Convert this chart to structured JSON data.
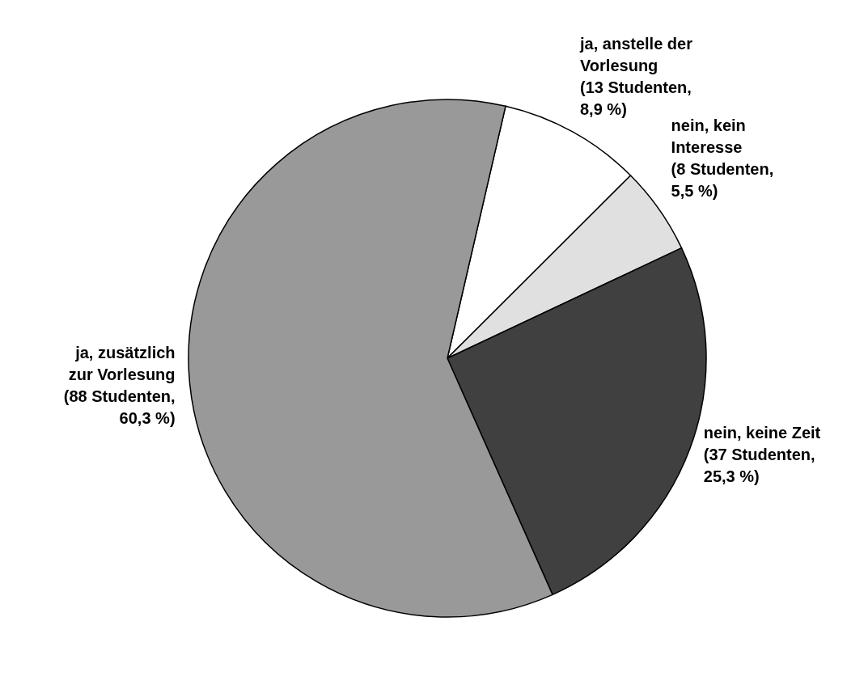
{
  "chart_data": {
    "type": "pie",
    "categories": [
      "ja, anstelle der Vorlesung",
      "nein, kein Interesse",
      "nein, keine Zeit",
      "ja, zusätzlich zur Vorlesung"
    ],
    "values": [
      13,
      8,
      37,
      88
    ],
    "value_labels": [
      "(13 Studenten, 8,9 %)",
      "(8 Studenten, 5,5 %)",
      "(37 Studenten, 25,3 %)",
      "(88 Studenten, 60,3 %)"
    ],
    "colors": [
      "#ffffff",
      "#e0e0e0",
      "#404040",
      "#999999"
    ],
    "legend": false
  }
}
